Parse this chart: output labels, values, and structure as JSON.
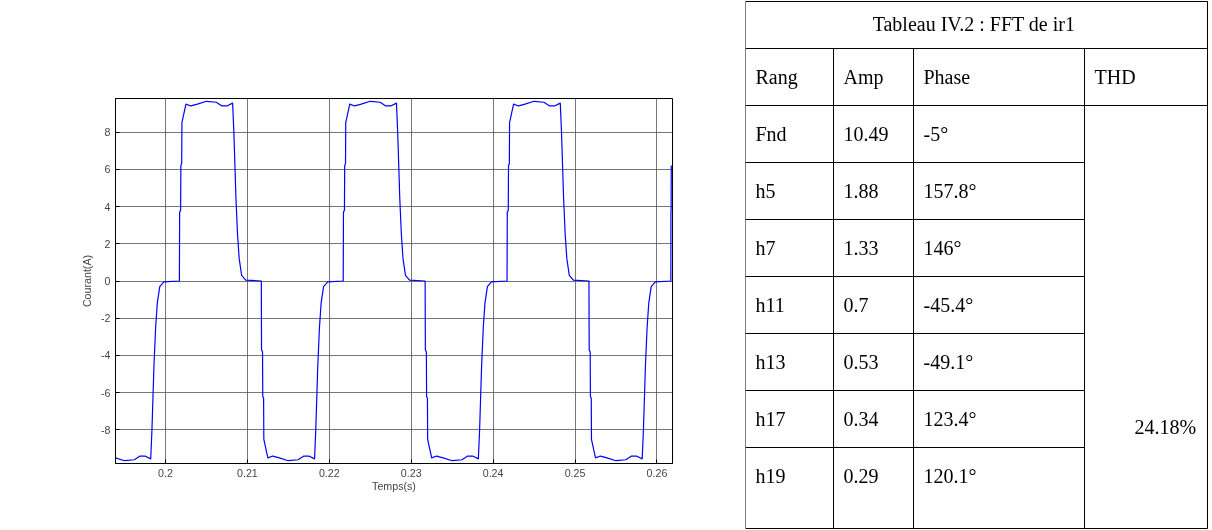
{
  "chart_data": [
    {
      "type": "line",
      "xlabel": "Temps(s)",
      "ylabel": "Courant(A)",
      "xlim": [
        0.1939,
        0.2619
      ],
      "ylim": [
        -9.8,
        9.8
      ],
      "xticks": [
        0.2,
        0.21,
        0.22,
        0.23,
        0.24,
        0.25,
        0.26
      ],
      "yticks": [
        -8,
        -6,
        -4,
        -2,
        0,
        2,
        4,
        6,
        8
      ],
      "grid": true,
      "series": [
        {
          "color": "#0000ff",
          "x": [
            0.1939,
            0.195,
            0.1962,
            0.1969,
            0.1975,
            0.1982,
            0.19835,
            0.1986,
            0.1988,
            0.199,
            0.1993,
            0.1998,
            0.2017,
            0.20173,
            0.20185,
            0.20188,
            0.20198,
            0.20201,
            0.2022,
            0.2025,
            0.2031,
            0.2039,
            0.205,
            0.2062,
            0.2069,
            0.2075,
            0.2082,
            0.20835,
            0.2086,
            0.2088,
            0.209,
            0.2093,
            0.2098,
            0.2117,
            0.21173,
            0.21185,
            0.21188,
            0.21198,
            0.21201,
            0.2122,
            0.2125,
            0.2131,
            0.2139,
            0.215,
            0.2162,
            0.2169,
            0.2175,
            0.2182,
            0.21835,
            0.2186,
            0.2188,
            0.219,
            0.2193,
            0.2198,
            0.2217,
            0.22173,
            0.22185,
            0.22188,
            0.22198,
            0.22201,
            0.2222,
            0.2225,
            0.2231,
            0.2239,
            0.225,
            0.2262,
            0.2269,
            0.2275,
            0.2282,
            0.22835,
            0.2286,
            0.2288,
            0.229,
            0.2293,
            0.2298,
            0.2317,
            0.23173,
            0.23185,
            0.23188,
            0.23198,
            0.23201,
            0.2322,
            0.2325,
            0.2331,
            0.2339,
            0.235,
            0.2362,
            0.2369,
            0.2375,
            0.2382,
            0.23835,
            0.2386,
            0.2388,
            0.239,
            0.2393,
            0.2398,
            0.2417,
            0.24173,
            0.24185,
            0.24188,
            0.24198,
            0.24201,
            0.2422,
            0.2425,
            0.2431,
            0.2439,
            0.245,
            0.2462,
            0.2469,
            0.2475,
            0.2482,
            0.24835,
            0.2486,
            0.2488,
            0.249,
            0.2493,
            0.2498,
            0.2517,
            0.25173,
            0.25185,
            0.25188,
            0.25198,
            0.25201,
            0.2522,
            0.2525,
            0.2531,
            0.2539,
            0.255,
            0.2562,
            0.2569,
            0.2575,
            0.2582,
            0.25835,
            0.2586,
            0.2588,
            0.259,
            0.2593,
            0.2598,
            0.2617,
            0.26171,
            0.26173,
            0.26175
          ],
          "values": [
            -9.5,
            -9.65,
            -9.6,
            -9.4,
            -9.4,
            -9.55,
            -8.0,
            -4.5,
            -2.5,
            -1.2,
            -0.3,
            -0.05,
            0,
            3.7,
            3.8,
            6.2,
            6.3,
            8.5,
            8.9,
            9.5,
            9.4,
            9.5,
            9.65,
            9.6,
            9.4,
            9.4,
            9.55,
            8.0,
            4.5,
            2.5,
            1.2,
            0.3,
            0.05,
            0,
            -3.7,
            -3.8,
            -6.2,
            -6.3,
            -8.5,
            -8.9,
            -9.5,
            -9.4,
            -9.5,
            -9.65,
            -9.6,
            -9.4,
            -9.4,
            -9.55,
            -8.0,
            -4.5,
            -2.5,
            -1.2,
            -0.3,
            -0.05,
            0,
            3.7,
            3.8,
            6.2,
            6.3,
            8.5,
            8.9,
            9.5,
            9.4,
            9.5,
            9.65,
            9.6,
            9.4,
            9.4,
            9.55,
            8.0,
            4.5,
            2.5,
            1.2,
            0.3,
            0.05,
            0,
            -3.7,
            -3.8,
            -6.2,
            -6.3,
            -8.5,
            -8.9,
            -9.5,
            -9.4,
            -9.5,
            -9.65,
            -9.6,
            -9.4,
            -9.4,
            -9.55,
            -8.0,
            -4.5,
            -2.5,
            -1.2,
            -0.3,
            -0.05,
            0,
            3.7,
            3.8,
            6.2,
            6.3,
            8.5,
            8.9,
            9.5,
            9.4,
            9.5,
            9.65,
            9.6,
            9.4,
            9.4,
            9.55,
            8.0,
            4.5,
            2.5,
            1.2,
            0.3,
            0.05,
            0,
            -3.7,
            -3.8,
            -6.2,
            -6.3,
            -8.5,
            -8.9,
            -9.5,
            -9.4,
            -9.5,
            -9.65,
            -9.6,
            -9.4,
            -9.4,
            -9.55,
            -8.0,
            -4.5,
            -2.5,
            -1.2,
            -0.3,
            -0.05,
            0,
            3.7,
            3.8,
            6.2
          ]
        }
      ]
    },
    {
      "type": "other",
      "title": "Tableau IV.2 : FFT  de ir1",
      "categories": [
        "Rang",
        "Amp",
        "Phase",
        "THD"
      ],
      "cell_labels": [
        [
          "Fnd",
          "10.49",
          "-5°",
          null
        ],
        [
          "h5",
          "1.88",
          "157.8°",
          null
        ],
        [
          "h7",
          "1.33",
          "146°",
          null
        ],
        [
          "h11",
          "0.7",
          "-45.4°",
          null
        ],
        [
          "h13",
          "0.53",
          "-49.1°",
          null
        ],
        [
          "h17",
          "0.34",
          "123.4°",
          "24.18%"
        ],
        [
          "h19",
          "0.29",
          "120.1°",
          null
        ]
      ]
    }
  ]
}
